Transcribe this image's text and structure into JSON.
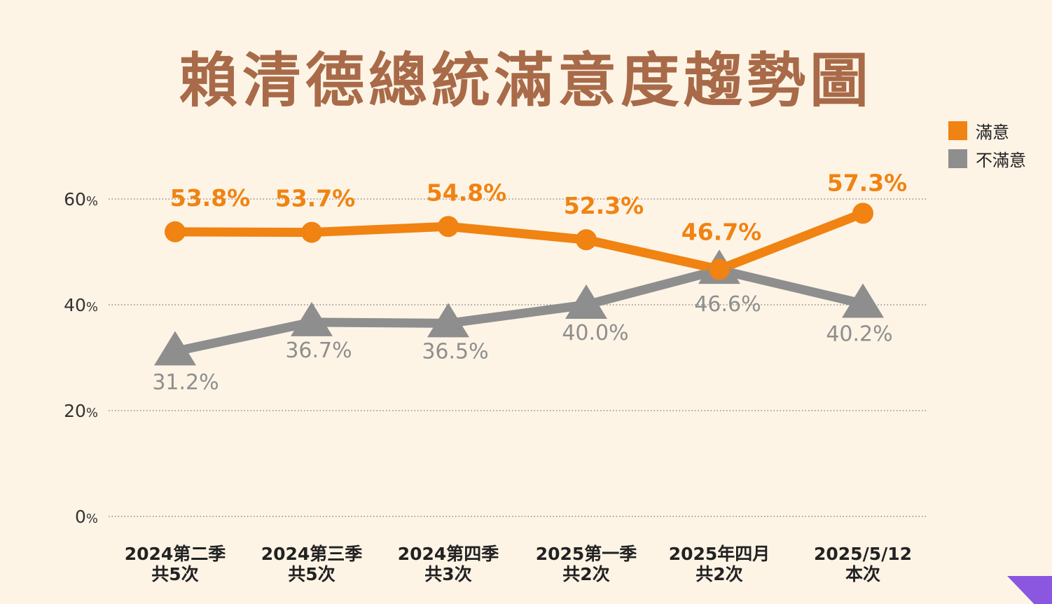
{
  "chart_data": {
    "type": "line",
    "title": "賴清德總統滿意度趨勢圖",
    "categories": [
      [
        "2024第二季",
        "共5次"
      ],
      [
        "2024第三季",
        "共5次"
      ],
      [
        "2024第四季",
        "共3次"
      ],
      [
        "2025第一季",
        "共2次"
      ],
      [
        "2025年四月",
        "共2次"
      ],
      [
        "2025/5/12",
        "本次"
      ]
    ],
    "series": [
      {
        "name": "滿意",
        "color": "#f08312",
        "marker": "circle",
        "values": [
          53.8,
          53.7,
          54.8,
          52.3,
          46.7,
          57.3
        ],
        "labels": [
          "53.8%",
          "53.7%",
          "54.8%",
          "52.3%",
          "46.7%",
          "57.3%"
        ]
      },
      {
        "name": "不滿意",
        "color": "#8e8e8e",
        "marker": "triangle",
        "values": [
          31.2,
          36.7,
          36.5,
          40.0,
          46.6,
          40.2
        ],
        "labels": [
          "31.2%",
          "36.7%",
          "36.5%",
          "40.0%",
          "46.6%",
          "40.2%"
        ]
      }
    ],
    "yticks": [
      {
        "value": 0,
        "num": "0",
        "unit": "%"
      },
      {
        "value": 20,
        "num": "20",
        "unit": "%"
      },
      {
        "value": 40,
        "num": "40",
        "unit": "%"
      },
      {
        "value": 60,
        "num": "60",
        "unit": "%"
      }
    ],
    "ylim": [
      0,
      60
    ],
    "grid": true,
    "legend_position": "top-right"
  }
}
